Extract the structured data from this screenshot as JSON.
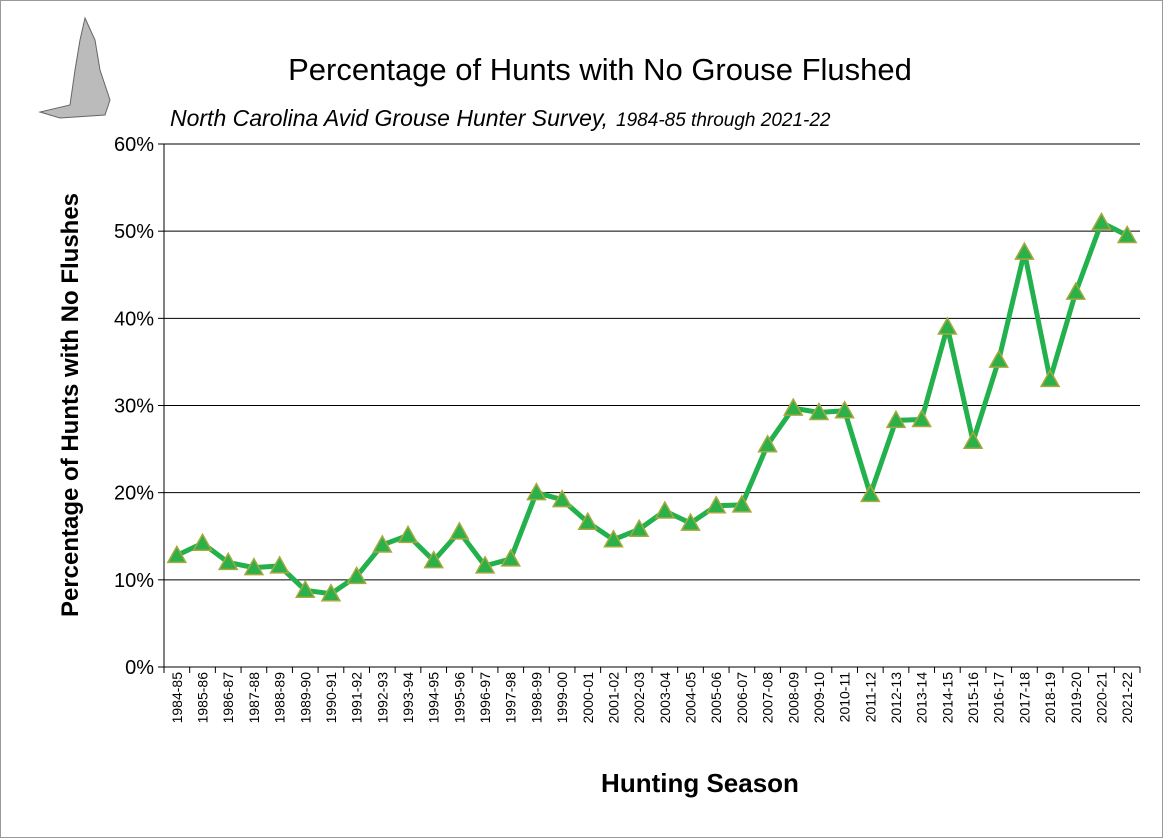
{
  "chart_data": {
    "type": "line",
    "title": "Percentage of Hunts with No Grouse Flushed",
    "subtitle": "North Carolina Avid Grouse Hunter Survey,",
    "subtitle_range": "1984-85 through 2021-22",
    "x_label": "Hunting Season",
    "y_label": "Percentage of Hunts with No Flushes",
    "categories": [
      "1984-85",
      "1985-86",
      "1986-87",
      "1987-88",
      "1988-89",
      "1989-90",
      "1990-91",
      "1991-92",
      "1992-93",
      "1993-94",
      "1994-95",
      "1995-96",
      "1996-97",
      "1997-98",
      "1998-99",
      "1999-00",
      "2000-01",
      "2001-02",
      "2002-03",
      "2003-04",
      "2004-05",
      "2005-06",
      "2006-07",
      "2007-08",
      "2008-09",
      "2009-10",
      "2010-11",
      "2011-12",
      "2012-13",
      "2013-14",
      "2014-15",
      "2015-16",
      "2016-17",
      "2017-18",
      "2018-19",
      "2019-20",
      "2020-21",
      "2021-22"
    ],
    "series": [
      {
        "name": "Percentage of Hunts with No Flushes",
        "color": "#22b14c",
        "marker_color": "#2cb04a",
        "marker_edge": "#a8a83c",
        "values": [
          12.8,
          14.2,
          12.0,
          11.4,
          11.6,
          8.8,
          8.4,
          10.4,
          14.0,
          15.1,
          12.2,
          15.5,
          11.6,
          12.4,
          20.0,
          19.2,
          16.6,
          14.6,
          15.8,
          17.9,
          16.5,
          18.5,
          18.6,
          25.5,
          29.7,
          29.2,
          29.4,
          19.8,
          28.3,
          28.4,
          39.0,
          25.9,
          35.2,
          47.6,
          33.0,
          43.0,
          51.0,
          49.5
        ]
      }
    ],
    "ylim": [
      0,
      60
    ],
    "yticks": [
      {
        "value": 0,
        "label": "0%"
      },
      {
        "value": 10,
        "label": "10%"
      },
      {
        "value": 20,
        "label": "20%"
      },
      {
        "value": 30,
        "label": "30%"
      },
      {
        "value": 40,
        "label": "40%"
      },
      {
        "value": 50,
        "label": "50%"
      },
      {
        "value": 60,
        "label": "60%"
      }
    ],
    "grid": true
  }
}
